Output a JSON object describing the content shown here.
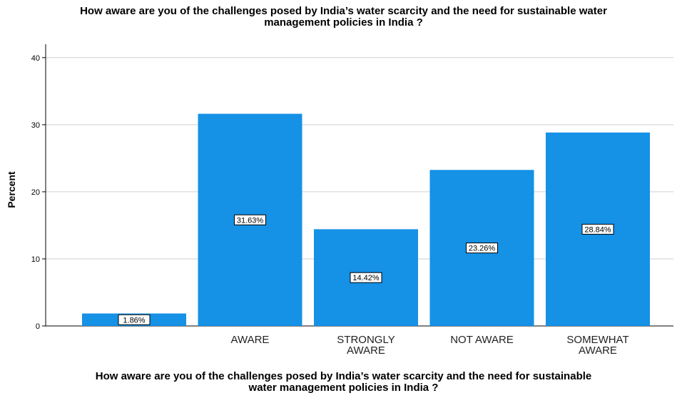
{
  "chart_data": {
    "type": "bar",
    "title_lines": [
      "How aware are you of the challenges posed by India’s water scarcity and the need for sustainable water",
      "management policies in India ?"
    ],
    "xlabel_lines": [
      "How aware are you of the challenges posed by India’s water scarcity and the need for sustainable",
      "water management policies in India ?"
    ],
    "ylabel": "Percent",
    "ylim": [
      0,
      42
    ],
    "yticks": [
      0,
      10,
      20,
      30,
      40
    ],
    "grid": true,
    "bar_color": "#1591e6",
    "categories": [
      {
        "label_lines": [],
        "value": 1.86,
        "data_label": "1.86%"
      },
      {
        "label_lines": [
          "AWARE"
        ],
        "value": 31.63,
        "data_label": "31.63%"
      },
      {
        "label_lines": [
          "STRONGLY",
          "AWARE"
        ],
        "value": 14.42,
        "data_label": "14.42%"
      },
      {
        "label_lines": [
          "NOT AWARE"
        ],
        "value": 23.26,
        "data_label": "23.26%"
      },
      {
        "label_lines": [
          "SOMEWHAT",
          "AWARE"
        ],
        "value": 28.84,
        "data_label": "28.84%"
      }
    ]
  }
}
